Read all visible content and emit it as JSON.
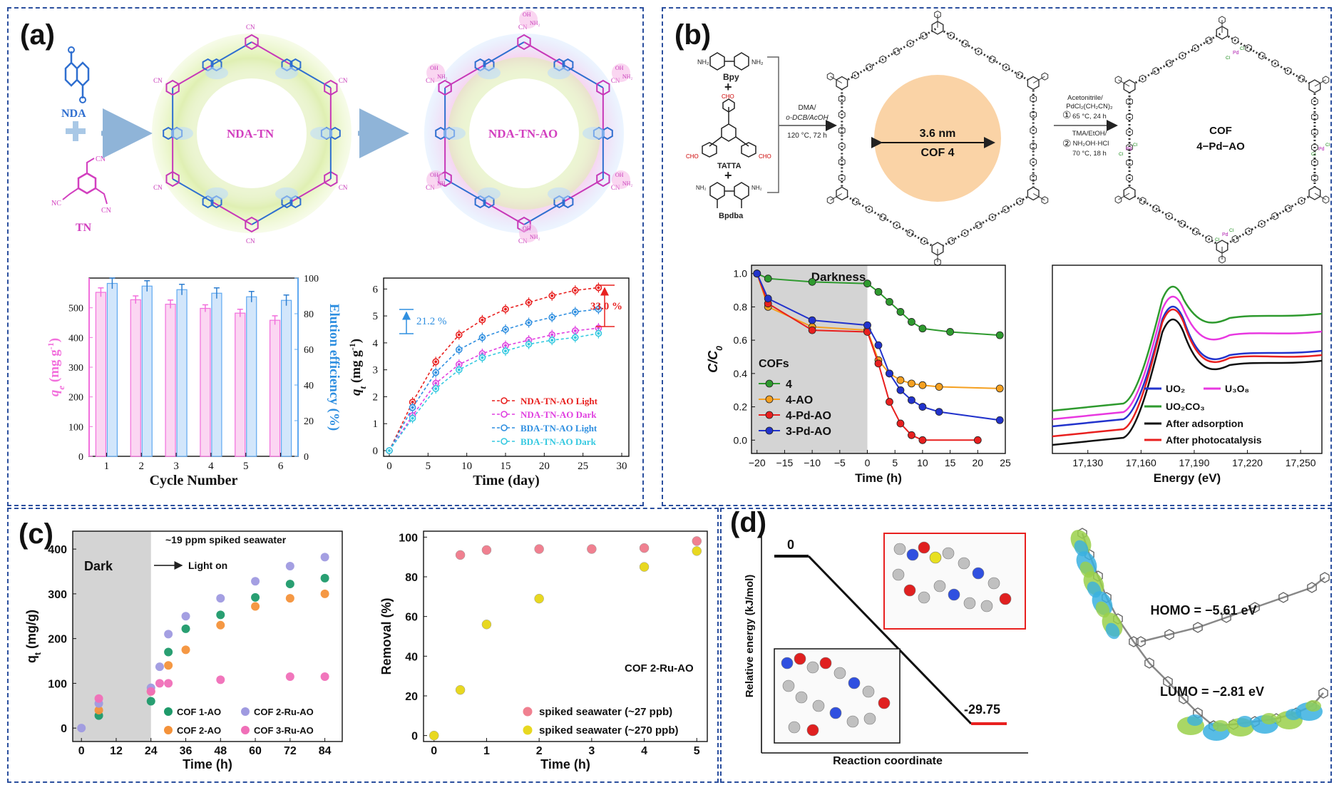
{
  "panels": {
    "a": {
      "label": "(a)",
      "scheme": {
        "monomer1": "NDA",
        "monomer2": "TN",
        "framework1": "NDA-TN",
        "framework2": "NDA-TN-AO",
        "group_cn": "CN",
        "group_nc": "NC",
        "group_oh": "OH",
        "group_nh2": "NH₂",
        "group_n": "N"
      },
      "chart_left": {
        "type": "bar",
        "categories": [
          "1",
          "2",
          "3",
          "4",
          "5",
          "6"
        ],
        "series": [
          {
            "name": "q_e",
            "color": "#f26fdc",
            "values": [
              552,
              527,
              512,
              498,
              482,
              458
            ],
            "errors": [
              15,
              13,
              14,
              12,
              13,
              15
            ]
          },
          {
            "name": "Elution efficiency",
            "color": "#5fa8f0",
            "values": [
              97,
              95.5,
              93.5,
              91.5,
              89.5,
              87.5
            ],
            "errors": [
              3,
              3,
              3,
              3,
              3,
              3
            ]
          }
        ],
        "xlabel": "Cycle Number",
        "ylabel_left": "q",
        "ylabel_left_sub": "e",
        "ylabel_left_unit": " (mg g",
        "ylabel_left_sup": "-1",
        "ylabel_left_close": ")",
        "ylabel_right": "Elution efficiency (%)",
        "ylim_left": [
          0,
          600
        ],
        "ylim_right": [
          0,
          100
        ],
        "yticks_left": [
          "0",
          "100",
          "200",
          "300",
          "400",
          "500"
        ],
        "yticks_right": [
          "0",
          "20",
          "40",
          "60",
          "80",
          "100"
        ]
      },
      "chart_right": {
        "type": "line",
        "x": [
          0,
          3,
          6,
          9,
          12,
          15,
          18,
          21,
          24,
          27
        ],
        "series": [
          {
            "name": "NDA-TN-AO Light",
            "color": "#e8201f",
            "values": [
              0,
              1.8,
              3.3,
              4.3,
              4.85,
              5.25,
              5.5,
              5.75,
              5.95,
              6.05
            ]
          },
          {
            "name": "NDA-TN-AO Dark",
            "color": "#e040e0",
            "values": [
              0,
              1.3,
              2.5,
              3.2,
              3.6,
              3.9,
              4.1,
              4.3,
              4.45,
              4.55
            ]
          },
          {
            "name": "BDA-TN-AO Light",
            "color": "#2f8fe0",
            "values": [
              0,
              1.6,
              2.9,
              3.75,
              4.2,
              4.5,
              4.75,
              4.95,
              5.15,
              5.25
            ]
          },
          {
            "name": "BDA-TN-AO Dark",
            "color": "#35c9e0",
            "values": [
              0,
              1.2,
              2.3,
              3.0,
              3.45,
              3.7,
              3.95,
              4.1,
              4.2,
              4.35
            ]
          }
        ],
        "xlabel": "Time (day)",
        "ylabel": "q",
        "ylabel_sub": "t",
        "ylabel_unit": " (mg g",
        "ylabel_sup": "-1",
        "ylabel_close": ")",
        "xlim": [
          0,
          30
        ],
        "ylim": [
          0,
          6.3
        ],
        "xticks": [
          "0",
          "5",
          "10",
          "15",
          "20",
          "25",
          "30"
        ],
        "yticks": [
          "0",
          "1",
          "2",
          "3",
          "4",
          "5",
          "6"
        ],
        "annotations": [
          "21.2 %",
          "33.0 %"
        ]
      }
    },
    "b": {
      "label": "(b)",
      "scheme": {
        "bpy": "Bpy",
        "tatta": "TATTA",
        "bpdba": "Bpdba",
        "plus": "+",
        "cond1_line1": "DMA/",
        "cond1_line2": "o-DCB/AcOH",
        "cond1_line3": "120 °C, 72 h",
        "pore_size": "3.6 nm",
        "cof_name": "COF 4",
        "cond2_line1": "Acetonitrile/",
        "cond2_line2": "PdCl₂(CH₂CN)₂",
        "cond2_line3": "65 °C, 24 h",
        "cond2_line4": "TMA/EtOH/",
        "cond2_line5": "NH₂OH·HCl",
        "cond2_line6": "70 °C, 18 h",
        "step1": "①",
        "step2": "②",
        "product_line1": "COF",
        "product_line2": "4−Pd−AO",
        "nh2": "NH₂",
        "cho": "CHO",
        "pd": "Pd",
        "cl": "Cl"
      },
      "chart_left": {
        "type": "line",
        "title": "Darkness",
        "x": [
          -20,
          -18,
          -10,
          0,
          2,
          4,
          6,
          8,
          10,
          15,
          24
        ],
        "series": [
          {
            "name": "4",
            "color": "#2e9a2e",
            "x": [
              -20,
              -18,
              -10,
              0,
              2,
              4,
              6,
              8,
              10,
              15,
              24
            ],
            "values": [
              1.0,
              0.97,
              0.95,
              0.94,
              0.89,
              0.83,
              0.77,
              0.71,
              0.67,
              0.65,
              0.63
            ]
          },
          {
            "name": "4-AO",
            "color": "#f5a020",
            "x": [
              -20,
              -18,
              -10,
              0,
              2,
              4,
              6,
              8,
              10,
              13,
              24
            ],
            "values": [
              1.0,
              0.8,
              0.68,
              0.66,
              0.48,
              0.4,
              0.36,
              0.34,
              0.33,
              0.32,
              0.31
            ]
          },
          {
            "name": "4-Pd-AO",
            "color": "#e8201f",
            "x": [
              -20,
              -18,
              -10,
              0,
              2,
              4,
              6,
              8,
              10,
              20
            ],
            "values": [
              1.0,
              0.82,
              0.66,
              0.65,
              0.46,
              0.23,
              0.1,
              0.03,
              0.0,
              0.0
            ]
          },
          {
            "name": "3-Pd-AO",
            "color": "#2233cc",
            "x": [
              -20,
              -18,
              -10,
              0,
              2,
              4,
              6,
              8,
              10,
              13,
              24
            ],
            "values": [
              1.0,
              0.85,
              0.72,
              0.69,
              0.57,
              0.4,
              0.3,
              0.24,
              0.2,
              0.17,
              0.12
            ]
          }
        ],
        "legend_title": "COFs",
        "xlabel": "Time (h)",
        "ylabel": "C/C",
        "ylabel_sub": "0",
        "xlim": [
          -21,
          25
        ],
        "ylim": [
          -0.08,
          1.05
        ],
        "xticks": [
          "−20",
          "−15",
          "−10",
          "−5",
          "0",
          "5",
          "10",
          "15",
          "20",
          "25"
        ],
        "yticks": [
          "0.0",
          "0.2",
          "0.4",
          "0.6",
          "0.8",
          "1.0"
        ]
      },
      "chart_right": {
        "type": "line",
        "xlabel": "Energy (eV)",
        "xticks": [
          "17,130",
          "17,160",
          "17,190",
          "17,220",
          "17,250"
        ],
        "xlim": [
          17110,
          17262
        ],
        "series": [
          {
            "name": "UO₂",
            "color": "#2233cc"
          },
          {
            "name": "U₃O₈",
            "color": "#e838e0"
          },
          {
            "name": "UO₂CO₃",
            "color": "#2e9a2e"
          },
          {
            "name": "After adsorption",
            "color": "#111111"
          },
          {
            "name": "After photocatalysis",
            "color": "#e8201f"
          }
        ]
      }
    },
    "c": {
      "label": "(c)",
      "chart_left": {
        "type": "scatter",
        "title": "~19 ppm spiked seawater",
        "dark_label": "Dark",
        "light_label": "Light on",
        "series": [
          {
            "name": "COF 1-AO",
            "color": "#1e9a6a",
            "x": [
              6,
              24,
              30,
              36,
              48,
              60,
              72,
              84
            ],
            "values": [
              28,
              60,
              170,
              222,
              253,
              292,
              322,
              335
            ]
          },
          {
            "name": "COF 2-AO",
            "color": "#f4923a",
            "x": [
              6,
              24,
              30,
              36,
              48,
              60,
              72,
              84
            ],
            "values": [
              40,
              82,
              140,
              175,
              230,
              272,
              290,
              300
            ]
          },
          {
            "name": "COF 2-Ru-AO",
            "color": "#9f9ae0",
            "x": [
              0,
              6,
              24,
              27,
              30,
              36,
              48,
              60,
              72,
              84
            ],
            "values": [
              0,
              55,
              90,
              137,
              210,
              250,
              290,
              328,
              362,
              382
            ]
          },
          {
            "name": "COF 3-Ru-AO",
            "color": "#f06fb8",
            "x": [
              6,
              24,
              27,
              30,
              48,
              72,
              84
            ],
            "values": [
              66,
              82,
              100,
              100,
              108,
              115,
              115
            ]
          }
        ],
        "xlabel": "Time (h)",
        "ylabel": "q",
        "ylabel_sub": "t",
        "ylabel_unit": " (mg/g)",
        "xlim": [
          -3,
          90
        ],
        "ylim": [
          -30,
          440
        ],
        "xticks": [
          "0",
          "12",
          "24",
          "36",
          "48",
          "60",
          "72",
          "84"
        ],
        "yticks": [
          "0",
          "100",
          "200",
          "300",
          "400"
        ]
      },
      "chart_right": {
        "type": "scatter",
        "title": "COF 2-Ru-AO",
        "series": [
          {
            "name": "spiked seawater (~27 ppb)",
            "color": "#f08090",
            "x": [
              0.5,
              1,
              2,
              3,
              4,
              5
            ],
            "values": [
              91,
              93.5,
              94,
              94,
              94.5,
              98
            ]
          },
          {
            "name": "spiked seawater (~270 ppb)",
            "color": "#e8d820",
            "x": [
              0,
              0.5,
              1,
              2,
              4,
              5
            ],
            "values": [
              0,
              23,
              56,
              69,
              85,
              93
            ]
          }
        ],
        "xlabel": "Time (h)",
        "ylabel": "Removal (%)",
        "xlim": [
          -0.2,
          5.2
        ],
        "ylim": [
          -3,
          103
        ],
        "xticks": [
          "0",
          "1",
          "2",
          "3",
          "4",
          "5"
        ],
        "yticks": [
          "0",
          "20",
          "40",
          "60",
          "80",
          "100"
        ]
      }
    },
    "d": {
      "label": "(d)",
      "chart": {
        "type": "line",
        "xlabel": "Reaction coordinate",
        "ylabel": "Relative energy (kJ/mol)",
        "values": [
          0,
          -29.75
        ],
        "value_labels": [
          "0",
          "-29.75"
        ]
      },
      "homo": "HOMO = −5.61 eV",
      "lumo": "LUMO = −2.81 eV"
    }
  },
  "colors": {
    "border": "#2b4f9e",
    "dark_shade": "#d4d4d4"
  }
}
